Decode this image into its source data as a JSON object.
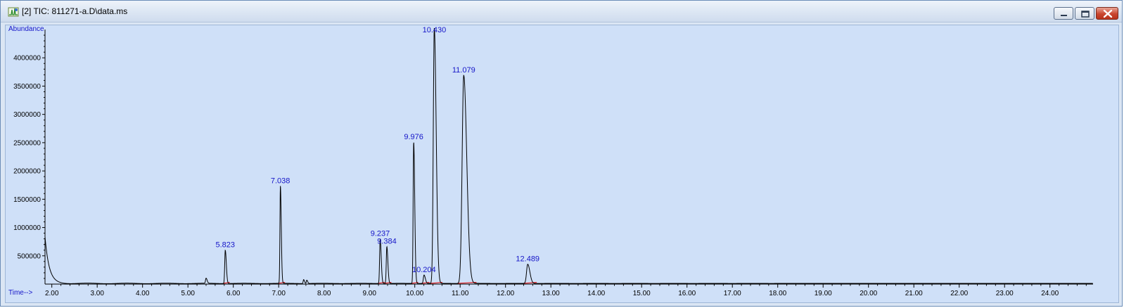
{
  "window": {
    "title": "[2] TIC: 811271-a.D\\data.ms",
    "icon": "chromatogram-app-icon",
    "buttons": [
      "minimize",
      "maximize",
      "close"
    ]
  },
  "colors": {
    "trace": "#000000",
    "baseline": "#e00000",
    "labels": "#1515c8",
    "axis": "#000000",
    "background": "#cfe0f8"
  },
  "chart_data": {
    "type": "line",
    "title": "",
    "xlabel": "Time-->",
    "ylabel": "Abundance",
    "xlim": [
      1.85,
      24.95
    ],
    "ylim": [
      0,
      4500000
    ],
    "x_ticks": [
      2.0,
      3.0,
      4.0,
      5.0,
      6.0,
      7.0,
      8.0,
      9.0,
      10.0,
      11.0,
      12.0,
      13.0,
      14.0,
      15.0,
      16.0,
      17.0,
      18.0,
      19.0,
      20.0,
      21.0,
      22.0,
      23.0,
      24.0
    ],
    "x_tick_labels": [
      "2.00",
      "3.00",
      "4.00",
      "5.00",
      "6.00",
      "7.00",
      "8.00",
      "9.00",
      "10.00",
      "11.00",
      "12.00",
      "13.00",
      "14.00",
      "15.00",
      "16.00",
      "17.00",
      "18.00",
      "19.00",
      "20.00",
      "21.00",
      "22.00",
      "23.00",
      "24.00"
    ],
    "y_ticks": [
      500000,
      1000000,
      1500000,
      2000000,
      2500000,
      3000000,
      3500000,
      4000000
    ],
    "y_tick_labels": [
      "500000",
      "1000000",
      "1500000",
      "2000000",
      "2500000",
      "3000000",
      "3500000",
      "4000000"
    ],
    "grid": false,
    "solvent_front": {
      "x": 1.85,
      "y": 820000
    },
    "peaks": [
      {
        "rt": 5.4,
        "height": 90000,
        "width": 0.012,
        "label": ""
      },
      {
        "rt": 5.823,
        "height": 590000,
        "width": 0.012,
        "label": "5.823"
      },
      {
        "rt": 7.038,
        "height": 1720000,
        "width": 0.01,
        "label": "7.038"
      },
      {
        "rt": 7.55,
        "height": 70000,
        "width": 0.01,
        "label": ""
      },
      {
        "rt": 7.62,
        "height": 60000,
        "width": 0.01,
        "label": ""
      },
      {
        "rt": 9.237,
        "height": 790000,
        "width": 0.012,
        "label": "9.237"
      },
      {
        "rt": 9.384,
        "height": 650000,
        "width": 0.012,
        "label": "9.384"
      },
      {
        "rt": 9.976,
        "height": 2500000,
        "width": 0.012,
        "label": "9.976"
      },
      {
        "rt": 10.204,
        "height": 150000,
        "width": 0.015,
        "label": "10.204"
      },
      {
        "rt": 10.43,
        "height": 4520000,
        "width": 0.022,
        "label": "10.430"
      },
      {
        "rt": 11.079,
        "height": 3680000,
        "width": 0.035,
        "label": "11.079"
      },
      {
        "rt": 12.489,
        "height": 340000,
        "width": 0.025,
        "label": "12.489"
      }
    ]
  }
}
